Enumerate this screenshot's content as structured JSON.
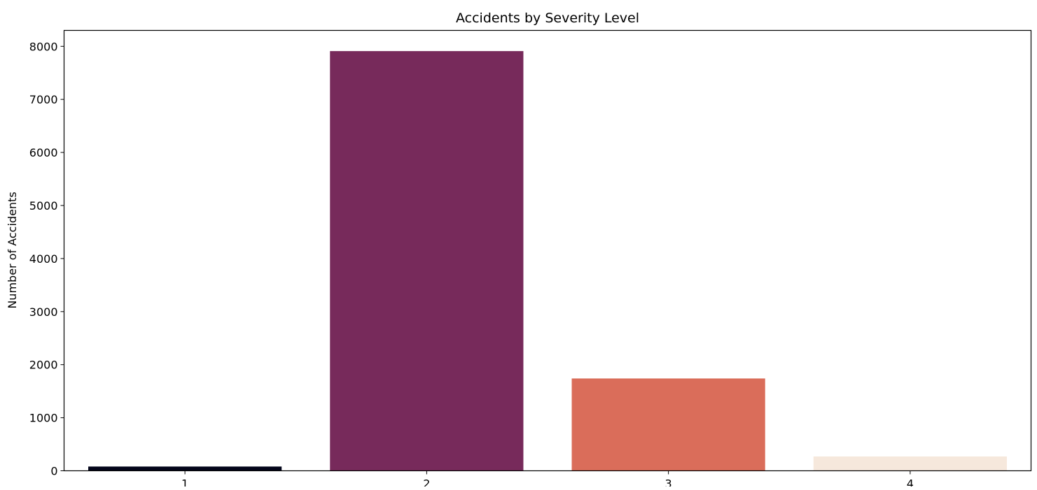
{
  "chart_data": {
    "type": "bar",
    "title": "Accidents by Severity Level",
    "xlabel": "",
    "ylabel": "Number of Accidents",
    "categories": [
      "1",
      "2",
      "3",
      "4"
    ],
    "values": [
      80,
      7910,
      1740,
      270
    ],
    "ylim": [
      0,
      8300
    ],
    "yticks": [
      0,
      1000,
      2000,
      3000,
      4000,
      5000,
      6000,
      7000,
      8000
    ],
    "colors": [
      "#03051a",
      "#772a5b",
      "#da6d5a",
      "#f6e8dc"
    ],
    "grid": false,
    "legend": "none"
  }
}
